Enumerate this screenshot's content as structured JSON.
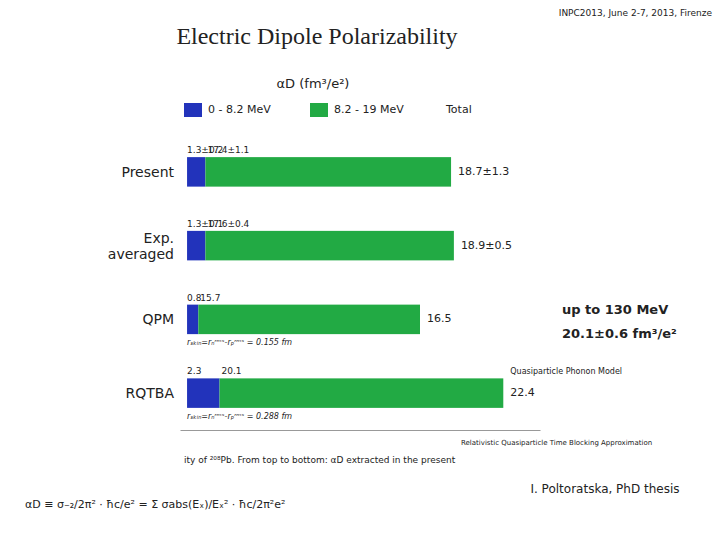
{
  "chart_data": {
    "type": "bar",
    "orientation": "horizontal",
    "stacked": true,
    "data_labels": true,
    "title": "Electric Dipole Polarizability",
    "header": "INPC2013, June 2-7, 2013, Firenze",
    "subtitle": "αD (fm³/e²)",
    "categories": [
      "Present",
      "Exp.\naveraged",
      "QPM",
      "RQTBA"
    ],
    "series": [
      {
        "name": "0 - 8.2 MeV",
        "color": "#2233bb",
        "values": [
          1.3,
          1.3,
          0.8,
          2.3
        ],
        "value_labels": [
          "1.3±0.2",
          "1.3±0.1",
          "0.8",
          "2.3"
        ]
      },
      {
        "name": "8.2 - 19 MeV",
        "color": "#22aa44",
        "values": [
          17.4,
          17.6,
          15.7,
          20.1
        ],
        "value_labels": [
          "17.4±1.1",
          "17.6±0.4",
          "15.7",
          "20.1"
        ]
      }
    ],
    "total_name": "Total",
    "total_labels": [
      "18.7±1.3",
      "18.9±0.5",
      "16.5",
      "22.4"
    ],
    "row_notes": [
      null,
      null,
      "rₛₖᵢₙ=rₙʳᵐˢ-rₚʳᵐˢ = 0.155 fm",
      "rₛₖᵢₙ=rₙʳᵐˢ-rₚʳᵐˢ = 0.288 fm"
    ],
    "row_top_notes": [
      null,
      null,
      null,
      "Quasiparticle Phonon Model"
    ],
    "side_note": [
      "up to 130 MeV",
      "20.1±0.6 fm³/e²"
    ],
    "footnote": "Relativistic Quasiparticle Time Blocking Approximation",
    "caption": "ity of ²⁰⁸Pb. From top to bottom: αD extracted in the present",
    "credit": "I. Poltoratska, PhD thesis",
    "formula": "αD ≡ σ₋₂/2π² · ħc/e² = Σ σabs(Eₓ)/Eₓ² · ħc/2π²e²",
    "xlim": [
      -0.5,
      25
    ],
    "tick_labels": false,
    "grid": false
  }
}
